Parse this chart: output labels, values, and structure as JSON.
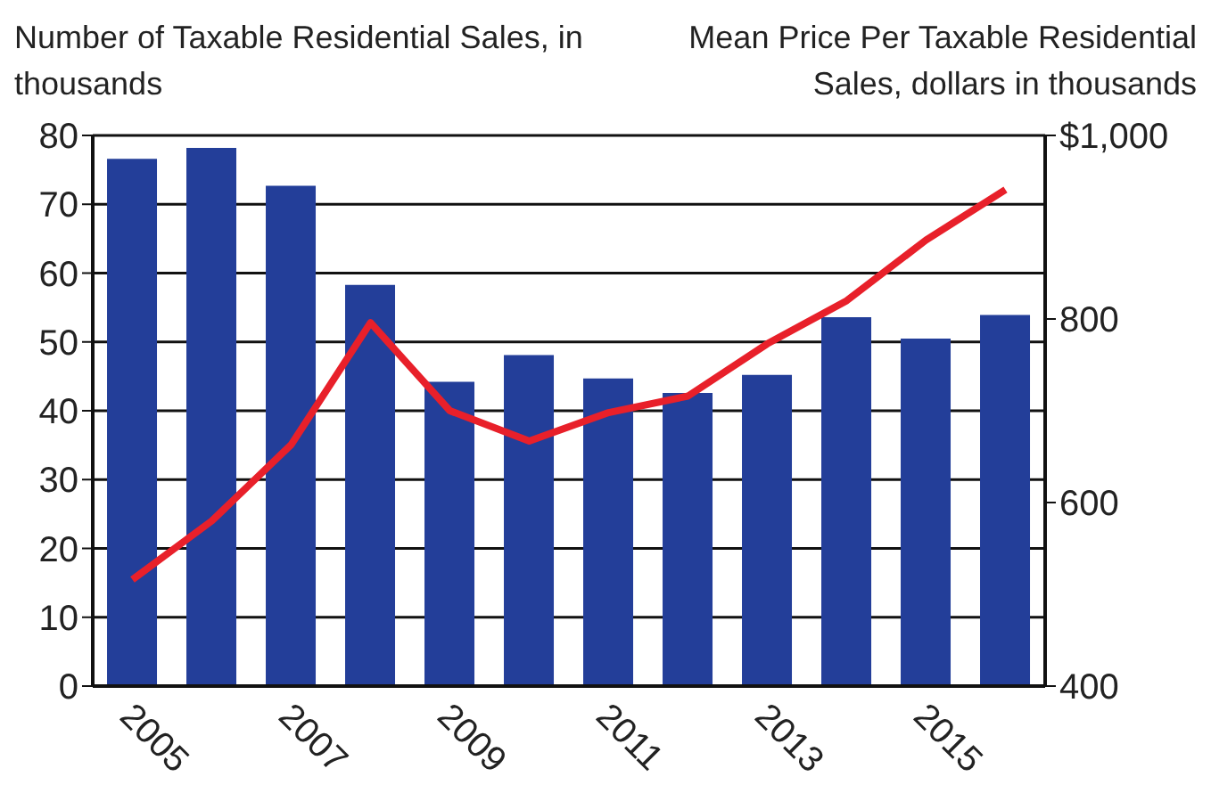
{
  "chart_data": {
    "type": "bar",
    "ylabel": "Number of Taxable Residential Sales, in thousands",
    "y2label": "Mean Price Per Taxable Residential Sales, dollars in thousands",
    "categories": [
      "2005",
      null,
      "2007",
      null,
      "2009",
      null,
      "2011",
      null,
      "2013",
      null,
      "2015",
      null
    ],
    "series": [
      {
        "color": "#233e99",
        "values": [
          76.6,
          78.2,
          72.7,
          58.3,
          44.2,
          48.1,
          44.7,
          42.6,
          45.2,
          53.6,
          50.5,
          53.9
        ]
      },
      {
        "type": "line",
        "axis": "y2",
        "color": "#e8202a",
        "values": [
          516,
          580,
          663,
          796,
          700,
          667,
          698,
          716,
          773,
          820,
          886,
          941
        ]
      }
    ],
    "ylim": [
      0,
      80
    ],
    "yticks": [
      0,
      10,
      20,
      30,
      40,
      50,
      60,
      70,
      80
    ],
    "y2lim": [
      400,
      1000
    ],
    "y2ticks": [
      400,
      600,
      800,
      {
        "value": 1000,
        "label": "$1,000"
      }
    ],
    "grid": "y",
    "marker": "none",
    "line_style": "solid"
  }
}
